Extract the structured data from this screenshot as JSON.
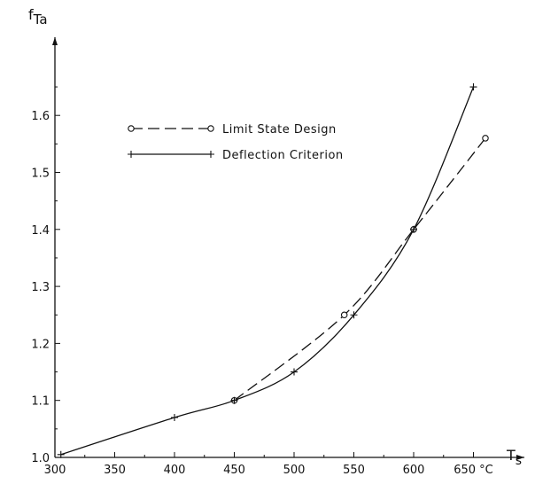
{
  "chart_data": {
    "type": "line",
    "title": "",
    "ylabel_main": "f",
    "ylabel_sub": "Ta",
    "xlabel_main": "T",
    "xlabel_sub": "s",
    "xunit": "°C",
    "xlim": [
      300,
      665
    ],
    "ylim": [
      1.0,
      1.7
    ],
    "xticks": [
      300,
      350,
      400,
      450,
      500,
      550,
      600,
      650
    ],
    "yticks": [
      1.0,
      1.1,
      1.2,
      1.3,
      1.4,
      1.5,
      1.6
    ],
    "grid": false,
    "legend_position": "upper-left",
    "series": [
      {
        "name": "Limit State Design",
        "line_style": "dashed",
        "marker": "circle",
        "color": "#111111",
        "points": [
          {
            "x": 450,
            "y": 1.1
          },
          {
            "x": 542,
            "y": 1.25
          },
          {
            "x": 600,
            "y": 1.4
          },
          {
            "x": 660,
            "y": 1.56
          }
        ]
      },
      {
        "name": "Deflection Criterion",
        "line_style": "solid",
        "marker": "plus",
        "color": "#111111",
        "points": [
          {
            "x": 305,
            "y": 1.005
          },
          {
            "x": 400,
            "y": 1.07
          },
          {
            "x": 450,
            "y": 1.1
          },
          {
            "x": 500,
            "y": 1.15
          },
          {
            "x": 550,
            "y": 1.25
          },
          {
            "x": 600,
            "y": 1.4
          },
          {
            "x": 650,
            "y": 1.65
          }
        ]
      }
    ]
  }
}
